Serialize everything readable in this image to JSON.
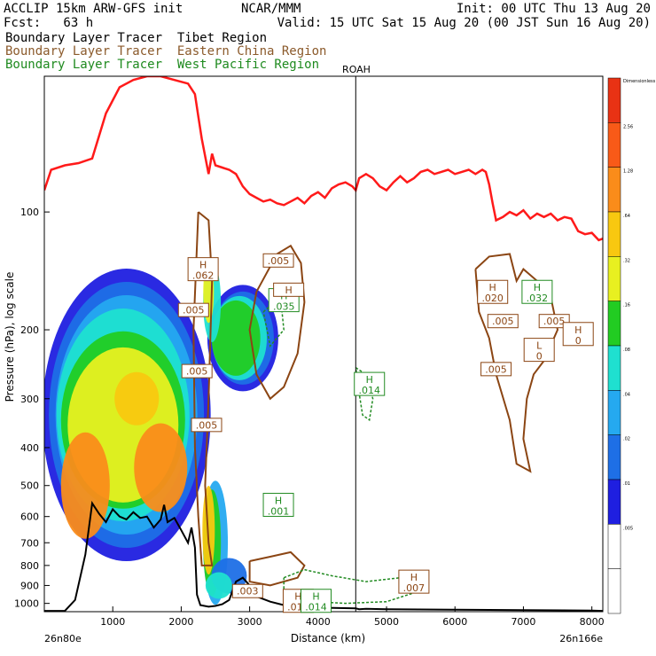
{
  "header": {
    "line1_left": "ACCLIP 15km ARW-GFS init",
    "line1_mid": "NCAR/MMM",
    "line1_right": "Init: 00 UTC Thu 13 Aug 20",
    "line2_left": "Fcst:   63 h",
    "line2_right": "Valid: 15 UTC Sat 15 Aug 20 (00 JST Sun 16 Aug 20)",
    "tracers": [
      {
        "text": "Boundary Layer Tracer  Tibet Region",
        "color": "#000000"
      },
      {
        "text": "Boundary Layer Tracer  Eastern China Region",
        "color": "#8b5a2b"
      },
      {
        "text": "Boundary Layer Tracer  West Pacific Region",
        "color": "#1e8a1e"
      }
    ]
  },
  "colors": {
    "tropopause": "#ff1a1a",
    "terrain": "#000000",
    "eastern_china_contour": "#8b4513",
    "west_pacific_contour": "#228b22",
    "marker_line": "#000000"
  },
  "chart_data": {
    "type": "heatmap",
    "title": "",
    "xlabel": "Distance (km)",
    "ylabel": "Pressure (hPa), log scale",
    "x_ticks": [
      "1000",
      "2000",
      "3000",
      "4000",
      "5000",
      "6000",
      "7000",
      "8000"
    ],
    "x_tick_values": [
      1000,
      2000,
      3000,
      4000,
      5000,
      6000,
      7000,
      8000
    ],
    "y_ticks": [
      "100",
      "200",
      "300",
      "400",
      "500",
      "600",
      "700",
      "800",
      "900",
      "1000"
    ],
    "y_tick_values": [
      100,
      200,
      300,
      400,
      500,
      600,
      700,
      800,
      900,
      1000
    ],
    "xlim": [
      0,
      8160
    ],
    "ylim_hpa": [
      1050,
      45
    ],
    "left_endpoint_label": "26n80e",
    "right_endpoint_label": "26n166e",
    "marker_label": "ROAH",
    "marker_x_km": 4550,
    "colorbar_labels": [
      ".005",
      ".01",
      ".02",
      ".04",
      ".08",
      ".16",
      ".32",
      ".64",
      "1.28",
      "2.56",
      "Dimensionless"
    ],
    "colorbar_colors": [
      "#ffffff",
      "#ffffff",
      "#1f1fe0",
      "#1e6fe6",
      "#25a9f0",
      "#1fe0d0",
      "#22cc22",
      "#e8f020",
      "#f8c810",
      "#fa8c1a",
      "#f85a18",
      "#e83214"
    ],
    "tropopause_hpa": [
      [
        0,
        88
      ],
      [
        100,
        78
      ],
      [
        300,
        76
      ],
      [
        500,
        75
      ],
      [
        700,
        73
      ],
      [
        900,
        56
      ],
      [
        1100,
        48
      ],
      [
        1300,
        46
      ],
      [
        1500,
        45
      ],
      [
        1700,
        45
      ],
      [
        1900,
        46
      ],
      [
        2100,
        47
      ],
      [
        2200,
        50
      ],
      [
        2250,
        57
      ],
      [
        2300,
        65
      ],
      [
        2350,
        72
      ],
      [
        2400,
        80
      ],
      [
        2450,
        71
      ],
      [
        2500,
        76
      ],
      [
        2600,
        77
      ],
      [
        2700,
        78
      ],
      [
        2800,
        80
      ],
      [
        2900,
        86
      ],
      [
        3000,
        90
      ],
      [
        3100,
        92
      ],
      [
        3200,
        94
      ],
      [
        3300,
        93
      ],
      [
        3400,
        95
      ],
      [
        3500,
        96
      ],
      [
        3600,
        94
      ],
      [
        3700,
        92
      ],
      [
        3800,
        95
      ],
      [
        3900,
        91
      ],
      [
        4000,
        89
      ],
      [
        4100,
        92
      ],
      [
        4200,
        87
      ],
      [
        4300,
        85
      ],
      [
        4400,
        84
      ],
      [
        4500,
        86
      ],
      [
        4550,
        88
      ],
      [
        4600,
        82
      ],
      [
        4700,
        80
      ],
      [
        4800,
        82
      ],
      [
        4900,
        86
      ],
      [
        5000,
        88
      ],
      [
        5100,
        84
      ],
      [
        5200,
        81
      ],
      [
        5300,
        84
      ],
      [
        5400,
        82
      ],
      [
        5500,
        79
      ],
      [
        5600,
        78
      ],
      [
        5700,
        80
      ],
      [
        5800,
        79
      ],
      [
        5900,
        78
      ],
      [
        6000,
        80
      ],
      [
        6100,
        79
      ],
      [
        6200,
        78
      ],
      [
        6300,
        80
      ],
      [
        6400,
        78
      ],
      [
        6450,
        79
      ],
      [
        6500,
        85
      ],
      [
        6550,
        95
      ],
      [
        6600,
        105
      ],
      [
        6700,
        103
      ],
      [
        6800,
        100
      ],
      [
        6900,
        102
      ],
      [
        7000,
        99
      ],
      [
        7100,
        104
      ],
      [
        7200,
        101
      ],
      [
        7300,
        103
      ],
      [
        7400,
        101
      ],
      [
        7500,
        105
      ],
      [
        7600,
        103
      ],
      [
        7700,
        104
      ],
      [
        7800,
        112
      ],
      [
        7900,
        114
      ],
      [
        8000,
        113
      ],
      [
        8100,
        118
      ],
      [
        8160,
        117
      ]
    ],
    "terrain_hpa": [
      [
        0,
        1045
      ],
      [
        300,
        1045
      ],
      [
        450,
        980
      ],
      [
        600,
        750
      ],
      [
        700,
        555
      ],
      [
        800,
        590
      ],
      [
        900,
        620
      ],
      [
        1000,
        575
      ],
      [
        1100,
        600
      ],
      [
        1200,
        610
      ],
      [
        1300,
        585
      ],
      [
        1400,
        605
      ],
      [
        1500,
        600
      ],
      [
        1600,
        640
      ],
      [
        1700,
        610
      ],
      [
        1750,
        560
      ],
      [
        1800,
        620
      ],
      [
        1900,
        605
      ],
      [
        2000,
        650
      ],
      [
        2100,
        700
      ],
      [
        2150,
        640
      ],
      [
        2200,
        720
      ],
      [
        2230,
        950
      ],
      [
        2280,
        1010
      ],
      [
        2400,
        1020
      ],
      [
        2500,
        1015
      ],
      [
        2600,
        1005
      ],
      [
        2700,
        980
      ],
      [
        2800,
        880
      ],
      [
        2900,
        860
      ],
      [
        3000,
        900
      ],
      [
        3100,
        960
      ],
      [
        3300,
        990
      ],
      [
        3500,
        1010
      ],
      [
        3700,
        1020
      ],
      [
        4000,
        1025
      ],
      [
        4300,
        1028
      ],
      [
        4550,
        1030
      ],
      [
        4600,
        1035
      ],
      [
        4700,
        1032
      ],
      [
        5000,
        1035
      ],
      [
        6000,
        1038
      ],
      [
        7000,
        1040
      ],
      [
        8000,
        1043
      ],
      [
        8160,
        1045
      ]
    ],
    "annotations": [
      {
        "label": "H",
        "value": ".062",
        "x_km": 2320,
        "p_hpa": 140,
        "color": "#8b4513"
      },
      {
        "label": "",
        "value": ".005",
        "x_km": 2180,
        "p_hpa": 178,
        "color": "#8b4513"
      },
      {
        "label": "",
        "value": ".005",
        "x_km": 2230,
        "p_hpa": 255,
        "color": "#8b4513"
      },
      {
        "label": "",
        "value": ".005",
        "x_km": 2370,
        "p_hpa": 350,
        "color": "#8b4513"
      },
      {
        "label": "H",
        "value": ".035",
        "x_km": 3500,
        "p_hpa": 168,
        "color": "#228b22"
      },
      {
        "label": "",
        "value": "H",
        "x_km": 3570,
        "p_hpa": 158,
        "color": "#8b4513"
      },
      {
        "label": "",
        "value": ".005",
        "x_km": 3420,
        "p_hpa": 133,
        "color": "#8b4513"
      },
      {
        "label": "H",
        "value": ".014",
        "x_km": 4750,
        "p_hpa": 275,
        "color": "#228b22"
      },
      {
        "label": "H",
        "value": ".001",
        "x_km": 3420,
        "p_hpa": 560,
        "color": "#228b22"
      },
      {
        "label": "H",
        "value": ".020",
        "x_km": 6550,
        "p_hpa": 160,
        "color": "#8b4513"
      },
      {
        "label": "H",
        "value": ".032",
        "x_km": 7200,
        "p_hpa": 160,
        "color": "#228b22"
      },
      {
        "label": "",
        "value": ".005",
        "x_km": 6700,
        "p_hpa": 190,
        "color": "#8b4513"
      },
      {
        "label": "",
        "value": ".005",
        "x_km": 7450,
        "p_hpa": 190,
        "color": "#8b4513"
      },
      {
        "label": "L",
        "value": "0",
        "x_km": 7230,
        "p_hpa": 225,
        "color": "#8b4513"
      },
      {
        "label": "H",
        "value": "0",
        "x_km": 7800,
        "p_hpa": 205,
        "color": "#8b4513"
      },
      {
        "label": "",
        "value": ".005",
        "x_km": 6600,
        "p_hpa": 252,
        "color": "#8b4513"
      },
      {
        "label": "",
        "value": ".003",
        "x_km": 2970,
        "p_hpa": 930,
        "color": "#8b4513"
      },
      {
        "label": "H",
        "value": ".012",
        "x_km": 3710,
        "p_hpa": 985,
        "color": "#8b4513"
      },
      {
        "label": "H",
        "value": ".014",
        "x_km": 3970,
        "p_hpa": 985,
        "color": "#228b22"
      },
      {
        "label": "H",
        "value": ".007",
        "x_km": 5400,
        "p_hpa": 880,
        "color": "#8b4513"
      }
    ]
  }
}
